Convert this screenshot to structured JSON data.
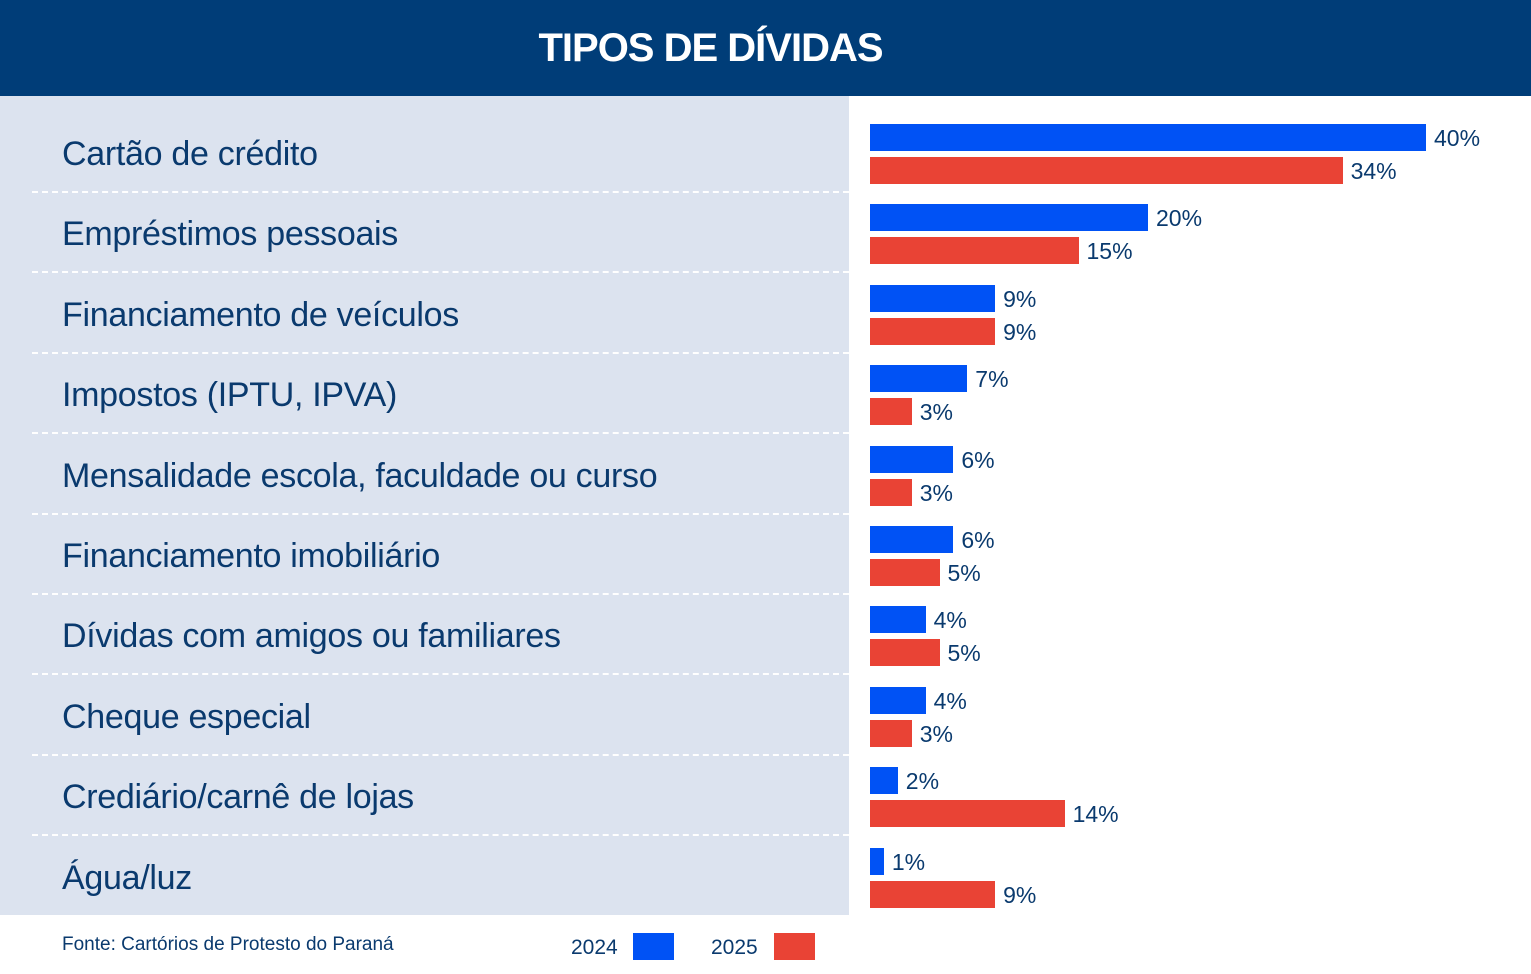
{
  "header": {
    "title": "TIPOS DE DÍVIDAS"
  },
  "colors": {
    "2024": "#0052f5",
    "2025": "#e94335",
    "header_bg": "#003d78",
    "panel_bg": "#dce3ef"
  },
  "chart_data": {
    "type": "bar",
    "orientation": "horizontal",
    "title": "TIPOS DE DÍVIDAS",
    "categories": [
      "Cartão de crédito",
      "Empréstimos pessoais",
      "Financiamento de veículos",
      "Impostos (IPTU, IPVA)",
      "Mensalidade escola, faculdade ou curso",
      "Financiamento imobiliário",
      "Dívidas com amigos ou familiares",
      "Cheque especial",
      "Crediário/carnê de lojas",
      "Água/luz"
    ],
    "series": [
      {
        "name": "2024",
        "values": [
          40,
          20,
          9,
          7,
          6,
          6,
          4,
          4,
          2,
          1
        ],
        "labels": [
          "40%",
          "20%",
          "9%",
          "7%",
          "6%",
          "6%",
          "4%",
          "4%",
          "2%",
          "1%"
        ]
      },
      {
        "name": "2025",
        "values": [
          34,
          15,
          9,
          3,
          3,
          5,
          5,
          3,
          14,
          9
        ],
        "labels": [
          "34%",
          "15%",
          "9%",
          "3%",
          "3%",
          "5%",
          "5%",
          "3%",
          "14%",
          "9%"
        ]
      }
    ],
    "unit": "%",
    "legend": "bottom-right",
    "grid": false
  },
  "footer": {
    "source": "Fonte: Cartórios de Protesto do Paraná",
    "legend_2024": "2024",
    "legend_2025": "2025"
  }
}
